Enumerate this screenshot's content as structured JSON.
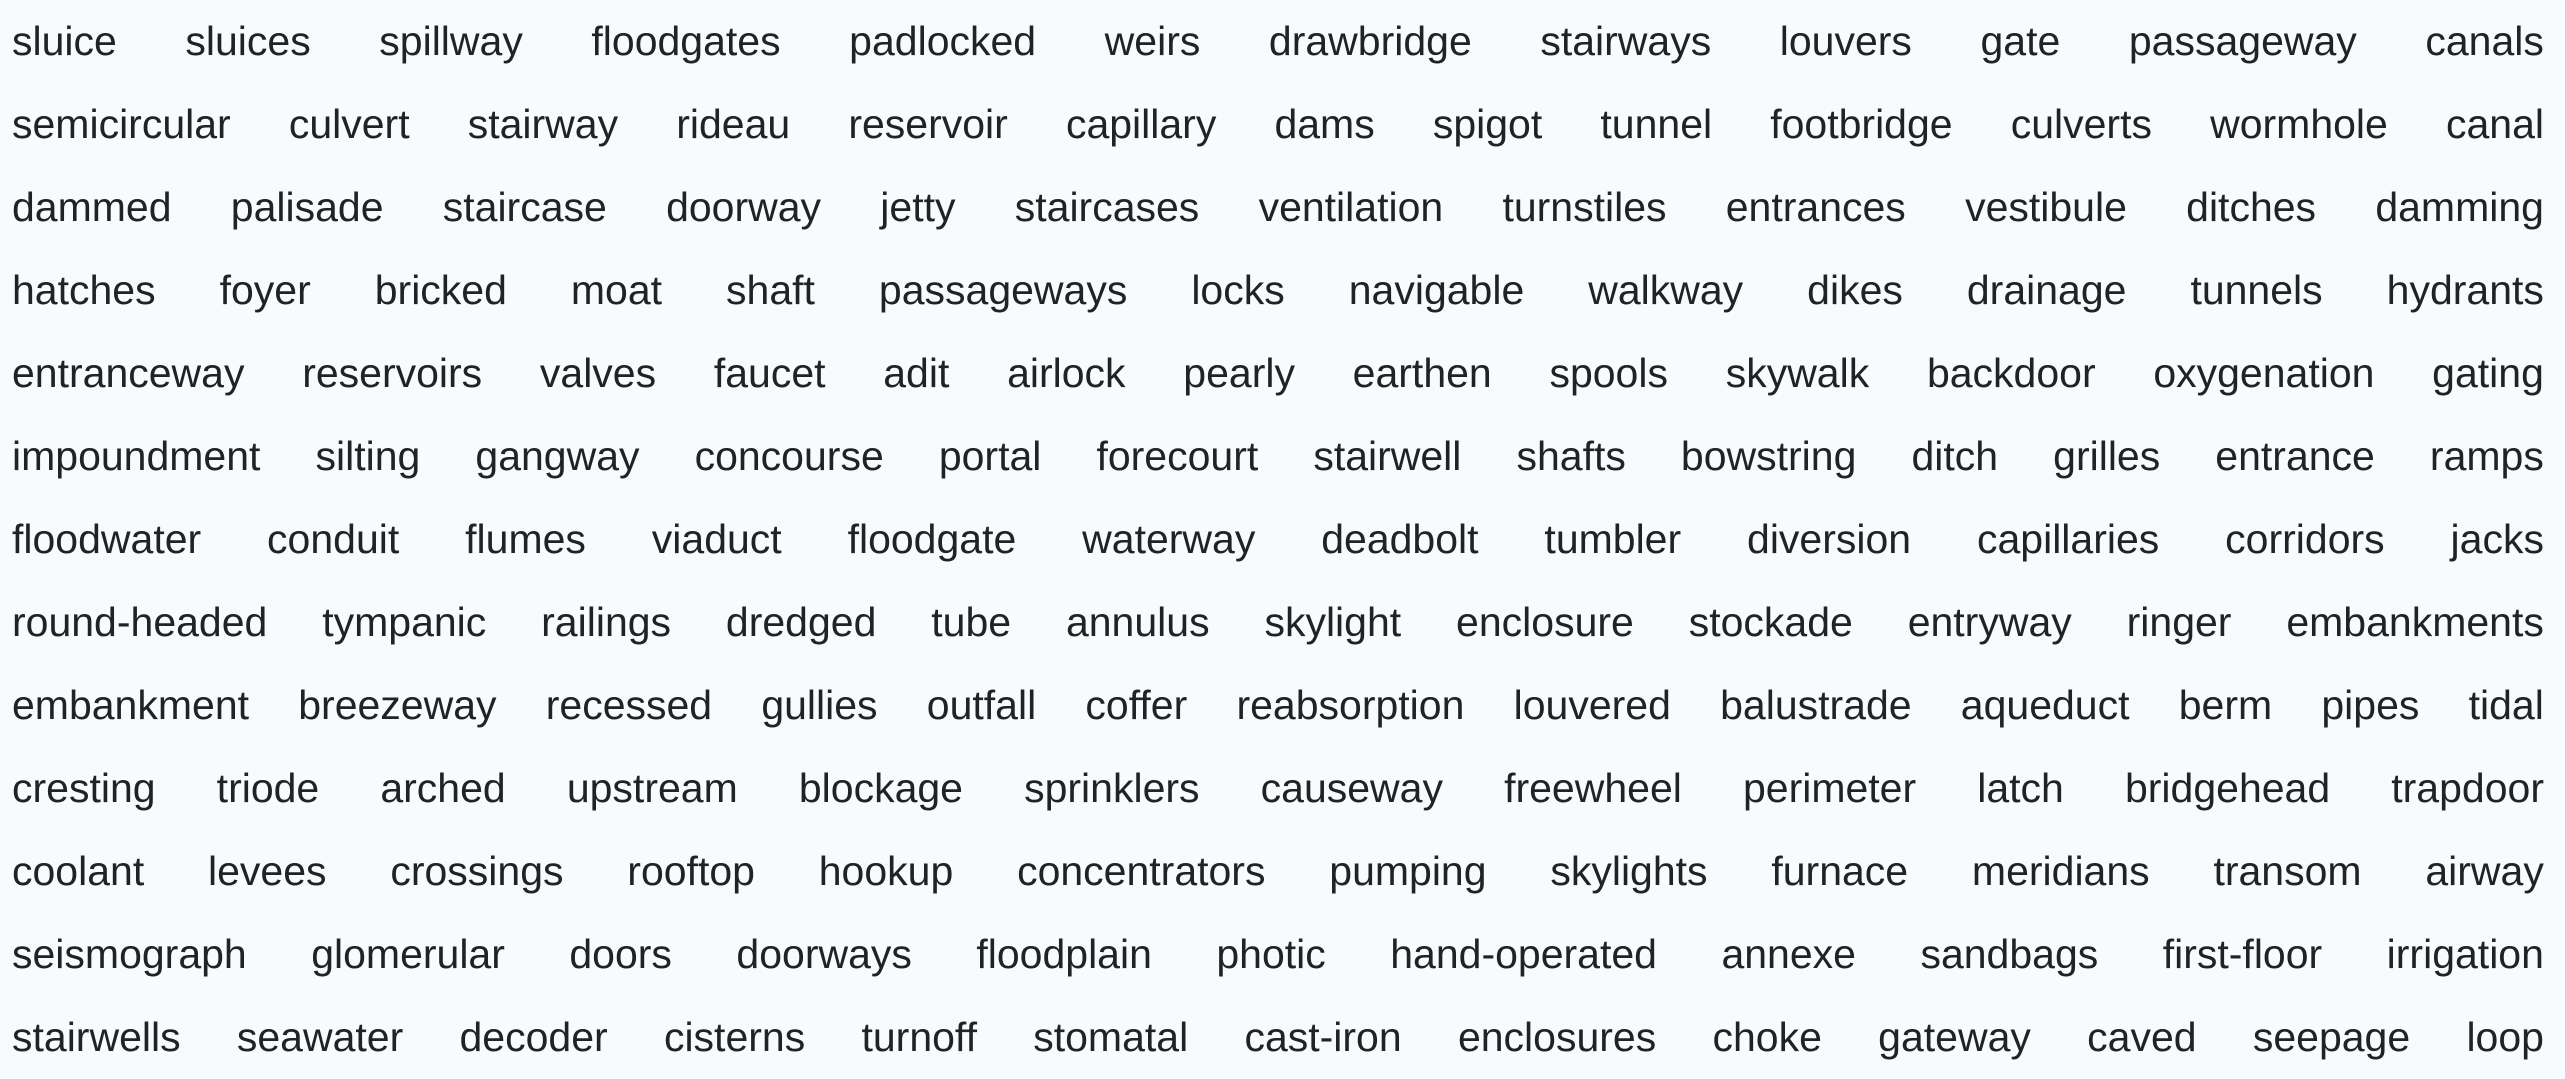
{
  "rows": [
    [
      "sluice",
      "sluices",
      "spillway",
      "floodgates",
      "padlocked",
      "weirs",
      "drawbridge",
      "stairways",
      "louvers",
      "gate",
      "passageway",
      "canals"
    ],
    [
      "semicircular",
      "culvert",
      "stairway",
      "rideau",
      "reservoir",
      "capillary",
      "dams",
      "spigot",
      "tunnel",
      "footbridge",
      "culverts",
      "wormhole",
      "canal"
    ],
    [
      "dammed",
      "palisade",
      "staircase",
      "doorway",
      "jetty",
      "staircases",
      "ventilation",
      "turnstiles",
      "entrances",
      "vestibule",
      "ditches",
      "damming"
    ],
    [
      "hatches",
      "foyer",
      "bricked",
      "moat",
      "shaft",
      "passageways",
      "locks",
      "navigable",
      "walkway",
      "dikes",
      "drainage",
      "tunnels",
      "hydrants"
    ],
    [
      "entranceway",
      "reservoirs",
      "valves",
      "faucet",
      "adit",
      "airlock",
      "pearly",
      "earthen",
      "spools",
      "skywalk",
      "backdoor",
      "oxygenation",
      "gating"
    ],
    [
      "impoundment",
      "silting",
      "gangway",
      "concourse",
      "portal",
      "forecourt",
      "stairwell",
      "shafts",
      "bowstring",
      "ditch",
      "grilles",
      "entrance",
      "ramps"
    ],
    [
      "floodwater",
      "conduit",
      "flumes",
      "viaduct",
      "floodgate",
      "waterway",
      "deadbolt",
      "tumbler",
      "diversion",
      "capillaries",
      "corridors",
      "jacks"
    ],
    [
      "round-headed",
      "tympanic",
      "railings",
      "dredged",
      "tube",
      "annulus",
      "skylight",
      "enclosure",
      "stockade",
      "entryway",
      "ringer",
      "embankments"
    ],
    [
      "embankment",
      "breezeway",
      "recessed",
      "gullies",
      "outfall",
      "coffer",
      "reabsorption",
      "louvered",
      "balustrade",
      "aqueduct",
      "berm",
      "pipes",
      "tidal"
    ],
    [
      "cresting",
      "triode",
      "arched",
      "upstream",
      "blockage",
      "sprinklers",
      "causeway",
      "freewheel",
      "perimeter",
      "latch",
      "bridgehead",
      "trapdoor"
    ],
    [
      "coolant",
      "levees",
      "crossings",
      "rooftop",
      "hookup",
      "concentrators",
      "pumping",
      "skylights",
      "furnace",
      "meridians",
      "transom",
      "airway"
    ],
    [
      "seismograph",
      "glomerular",
      "doors",
      "doorways",
      "floodplain",
      "photic",
      "hand-operated",
      "annexe",
      "sandbags",
      "first-floor",
      "irrigation"
    ],
    [
      "stairwells",
      "seawater",
      "decoder",
      "cisterns",
      "turnoff",
      "stomatal",
      "cast-iron",
      "enclosures",
      "choke",
      "gateway",
      "caved",
      "seepage",
      "loop"
    ]
  ],
  "colors": {
    "background": "#f7fbfe",
    "text": "#222222"
  }
}
